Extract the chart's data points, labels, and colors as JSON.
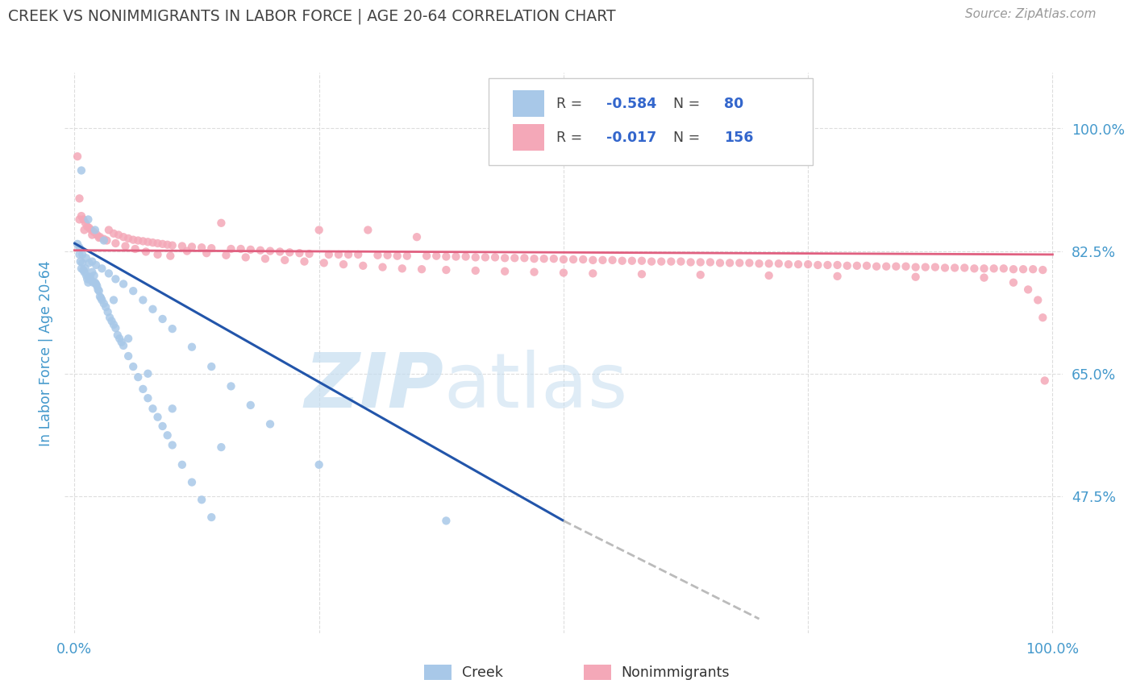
{
  "title": "CREEK VS NONIMMIGRANTS IN LABOR FORCE | AGE 20-64 CORRELATION CHART",
  "source": "Source: ZipAtlas.com",
  "ylabel": "In Labor Force | Age 20-64",
  "creek_R": -0.584,
  "creek_N": 80,
  "nonimm_R": -0.017,
  "nonimm_N": 156,
  "creek_color": "#a8c8e8",
  "nonimm_color": "#f4a8b8",
  "creek_line_color": "#2255aa",
  "nonimm_line_color": "#e06080",
  "trend_dash_color": "#bbbbbb",
  "watermark_zip_color": "#c8dff0",
  "watermark_atlas_color": "#c8ddf0",
  "grid_color": "#dddddd",
  "title_color": "#444444",
  "tick_label_color": "#4499cc",
  "background_color": "#ffffff",
  "ylim": [
    0.28,
    1.08
  ],
  "xlim": [
    -0.01,
    1.01
  ],
  "ytick_vals": [
    0.475,
    0.65,
    0.825,
    1.0
  ],
  "ytick_labels": [
    "47.5%",
    "65.0%",
    "82.5%",
    "100.0%"
  ],
  "creek_x": [
    0.003,
    0.005,
    0.006,
    0.007,
    0.008,
    0.009,
    0.01,
    0.011,
    0.012,
    0.013,
    0.014,
    0.015,
    0.016,
    0.017,
    0.018,
    0.019,
    0.02,
    0.021,
    0.022,
    0.023,
    0.024,
    0.025,
    0.026,
    0.027,
    0.028,
    0.03,
    0.032,
    0.034,
    0.036,
    0.038,
    0.04,
    0.042,
    0.044,
    0.046,
    0.048,
    0.05,
    0.055,
    0.06,
    0.065,
    0.07,
    0.075,
    0.08,
    0.085,
    0.09,
    0.095,
    0.1,
    0.11,
    0.12,
    0.13,
    0.14,
    0.005,
    0.008,
    0.012,
    0.018,
    0.022,
    0.028,
    0.035,
    0.042,
    0.05,
    0.06,
    0.07,
    0.08,
    0.09,
    0.1,
    0.12,
    0.14,
    0.16,
    0.18,
    0.2,
    0.25,
    0.007,
    0.014,
    0.021,
    0.03,
    0.04,
    0.055,
    0.075,
    0.1,
    0.15,
    0.38
  ],
  "creek_y": [
    0.835,
    0.82,
    0.81,
    0.8,
    0.808,
    0.798,
    0.795,
    0.8,
    0.79,
    0.785,
    0.78,
    0.808,
    0.788,
    0.783,
    0.795,
    0.78,
    0.79,
    0.78,
    0.778,
    0.775,
    0.77,
    0.768,
    0.76,
    0.758,
    0.755,
    0.75,
    0.745,
    0.738,
    0.73,
    0.725,
    0.72,
    0.715,
    0.705,
    0.7,
    0.695,
    0.69,
    0.675,
    0.66,
    0.645,
    0.628,
    0.615,
    0.6,
    0.588,
    0.575,
    0.562,
    0.548,
    0.52,
    0.495,
    0.47,
    0.445,
    0.83,
    0.82,
    0.815,
    0.81,
    0.805,
    0.8,
    0.793,
    0.785,
    0.778,
    0.768,
    0.755,
    0.742,
    0.728,
    0.714,
    0.688,
    0.66,
    0.632,
    0.605,
    0.578,
    0.52,
    0.94,
    0.87,
    0.855,
    0.84,
    0.755,
    0.7,
    0.65,
    0.6,
    0.545,
    0.44
  ],
  "nonimm_x": [
    0.003,
    0.005,
    0.007,
    0.009,
    0.011,
    0.013,
    0.015,
    0.017,
    0.02,
    0.023,
    0.026,
    0.03,
    0.035,
    0.04,
    0.045,
    0.05,
    0.055,
    0.06,
    0.065,
    0.07,
    0.075,
    0.08,
    0.085,
    0.09,
    0.095,
    0.1,
    0.11,
    0.12,
    0.13,
    0.14,
    0.15,
    0.16,
    0.17,
    0.18,
    0.19,
    0.2,
    0.21,
    0.22,
    0.23,
    0.24,
    0.25,
    0.26,
    0.27,
    0.28,
    0.29,
    0.3,
    0.31,
    0.32,
    0.33,
    0.34,
    0.35,
    0.36,
    0.37,
    0.38,
    0.39,
    0.4,
    0.41,
    0.42,
    0.43,
    0.44,
    0.45,
    0.46,
    0.47,
    0.48,
    0.49,
    0.5,
    0.51,
    0.52,
    0.53,
    0.54,
    0.55,
    0.56,
    0.57,
    0.58,
    0.59,
    0.6,
    0.61,
    0.62,
    0.63,
    0.64,
    0.65,
    0.66,
    0.67,
    0.68,
    0.69,
    0.7,
    0.71,
    0.72,
    0.73,
    0.74,
    0.75,
    0.76,
    0.77,
    0.78,
    0.79,
    0.8,
    0.81,
    0.82,
    0.83,
    0.84,
    0.85,
    0.86,
    0.87,
    0.88,
    0.89,
    0.9,
    0.91,
    0.92,
    0.93,
    0.94,
    0.95,
    0.96,
    0.97,
    0.98,
    0.99,
    0.005,
    0.01,
    0.018,
    0.025,
    0.033,
    0.042,
    0.052,
    0.062,
    0.073,
    0.085,
    0.098,
    0.115,
    0.135,
    0.155,
    0.175,
    0.195,
    0.215,
    0.235,
    0.255,
    0.275,
    0.295,
    0.315,
    0.335,
    0.355,
    0.38,
    0.41,
    0.44,
    0.47,
    0.5,
    0.53,
    0.58,
    0.64,
    0.71,
    0.78,
    0.86,
    0.93,
    0.96,
    0.975,
    0.985,
    0.99,
    0.992
  ],
  "nonimm_y": [
    0.96,
    0.9,
    0.875,
    0.87,
    0.865,
    0.86,
    0.858,
    0.855,
    0.852,
    0.848,
    0.845,
    0.842,
    0.855,
    0.85,
    0.848,
    0.845,
    0.843,
    0.841,
    0.84,
    0.839,
    0.838,
    0.837,
    0.836,
    0.835,
    0.834,
    0.833,
    0.832,
    0.831,
    0.83,
    0.829,
    0.865,
    0.828,
    0.828,
    0.827,
    0.826,
    0.825,
    0.824,
    0.823,
    0.822,
    0.821,
    0.855,
    0.82,
    0.82,
    0.82,
    0.82,
    0.855,
    0.819,
    0.819,
    0.818,
    0.818,
    0.845,
    0.818,
    0.818,
    0.817,
    0.817,
    0.817,
    0.816,
    0.816,
    0.816,
    0.815,
    0.815,
    0.815,
    0.814,
    0.814,
    0.814,
    0.813,
    0.813,
    0.813,
    0.812,
    0.812,
    0.812,
    0.811,
    0.811,
    0.811,
    0.81,
    0.81,
    0.81,
    0.81,
    0.809,
    0.809,
    0.809,
    0.808,
    0.808,
    0.808,
    0.808,
    0.807,
    0.807,
    0.807,
    0.806,
    0.806,
    0.806,
    0.805,
    0.805,
    0.805,
    0.804,
    0.804,
    0.804,
    0.803,
    0.803,
    0.803,
    0.803,
    0.802,
    0.802,
    0.802,
    0.801,
    0.801,
    0.801,
    0.8,
    0.8,
    0.8,
    0.8,
    0.799,
    0.799,
    0.799,
    0.798,
    0.87,
    0.855,
    0.848,
    0.844,
    0.84,
    0.836,
    0.832,
    0.828,
    0.824,
    0.82,
    0.818,
    0.825,
    0.822,
    0.819,
    0.816,
    0.814,
    0.812,
    0.81,
    0.808,
    0.806,
    0.804,
    0.802,
    0.8,
    0.799,
    0.798,
    0.797,
    0.796,
    0.795,
    0.794,
    0.793,
    0.792,
    0.791,
    0.79,
    0.789,
    0.788,
    0.787,
    0.78,
    0.77,
    0.755,
    0.73,
    0.64
  ]
}
